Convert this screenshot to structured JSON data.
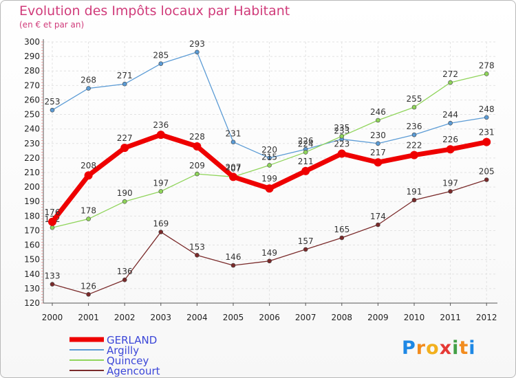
{
  "chart_data": {
    "type": "line",
    "title": "Evolution des Impôts locaux par Habitant",
    "subtitle": "(en € et par an)",
    "xlabel": "",
    "ylabel": "",
    "x": [
      "2000",
      "2001",
      "2002",
      "2003",
      "2004",
      "2005",
      "2006",
      "2007",
      "2008",
      "2009",
      "2010",
      "2011",
      "2012"
    ],
    "ylim": [
      120,
      300
    ],
    "yticks": [
      120,
      130,
      140,
      150,
      160,
      170,
      180,
      190,
      200,
      210,
      220,
      230,
      240,
      250,
      260,
      270,
      280,
      290,
      300
    ],
    "grid": true,
    "legend_position": "bottom-left",
    "series": [
      {
        "name": "GERLAND",
        "color": "#ee0000",
        "values": [
          176,
          208,
          227,
          236,
          228,
          207,
          199,
          211,
          223,
          217,
          222,
          226,
          231
        ]
      },
      {
        "name": "Argilly",
        "color": "#5b9bd5",
        "values": [
          253,
          268,
          271,
          285,
          293,
          231,
          220,
          226,
          233,
          230,
          236,
          244,
          248
        ]
      },
      {
        "name": "Quincey",
        "color": "#8fd45a",
        "values": [
          172,
          178,
          190,
          197,
          209,
          207,
          215,
          224,
          235,
          246,
          255,
          272,
          278
        ]
      },
      {
        "name": "Agencourt",
        "color": "#7a2a2a",
        "values": [
          133,
          126,
          136,
          169,
          153,
          146,
          149,
          157,
          165,
          174,
          191,
          197,
          205
        ]
      }
    ]
  },
  "logo": {
    "letters": [
      "P",
      "r",
      "o",
      "x",
      "i",
      "t",
      "i"
    ],
    "colors": [
      "#1e88e5",
      "#f28c1e",
      "#f2b01e",
      "#e53935",
      "#43a047",
      "#f28c1e",
      "#1e88e5"
    ]
  }
}
